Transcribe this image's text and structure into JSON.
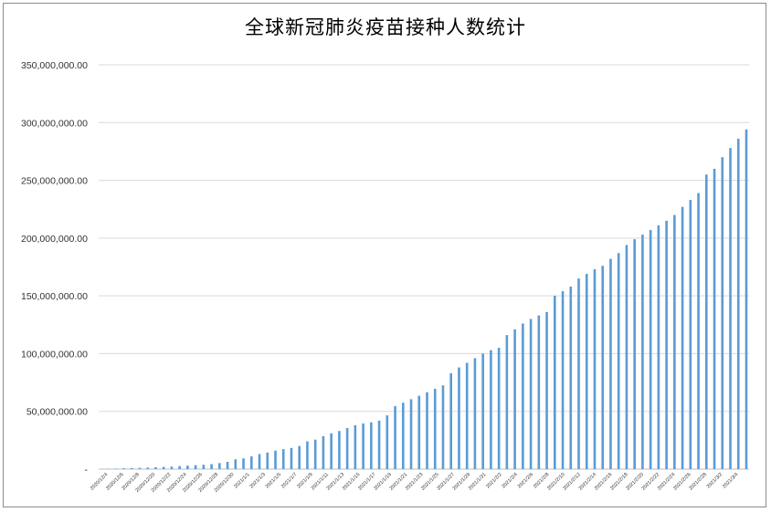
{
  "chart_data": {
    "type": "bar",
    "title": "全球新冠肺炎疫苗接种人数统计",
    "xlabel": "",
    "ylabel": "",
    "ylim": [
      0,
      350000000
    ],
    "yticks": [
      0,
      50000000,
      100000000,
      150000000,
      200000000,
      250000000,
      300000000,
      350000000
    ],
    "ytick_labels": [
      "-",
      "50,000,000.00",
      "100,000,000.00",
      "150,000,000.00",
      "200,000,000.00",
      "250,000,000.00",
      "300,000,000.00",
      "350,000,000.00"
    ],
    "grid": true,
    "legend": "none",
    "bar_color": "#5b9bd5",
    "xtick_labels": [
      "2020/12/4",
      "2020/12/6",
      "2020/12/8",
      "2020/12/20",
      "2020/12/22",
      "2020/12/24",
      "2020/12/26",
      "2020/12/28",
      "2020/12/30",
      "2021/1/1",
      "2021/1/3",
      "2021/1/5",
      "2021/1/7",
      "2021/1/9",
      "2021/1/11",
      "2021/1/13",
      "2021/1/15",
      "2021/1/17",
      "2021/1/19",
      "2021/1/21",
      "2021/1/23",
      "2021/1/25",
      "2021/1/27",
      "2021/1/29",
      "2021/1/31",
      "2021/2/2",
      "2021/2/4",
      "2021/2/6",
      "2021/2/8",
      "2021/2/10",
      "2021/2/12",
      "2021/2/14",
      "2021/2/16",
      "2021/2/18",
      "2021/2/20",
      "2021/2/22",
      "2021/2/24",
      "2021/2/26",
      "2021/2/28",
      "2021/3/2",
      "2021/3/4"
    ],
    "values": [
      200000,
      400000,
      700000,
      900000,
      1100000,
      1300000,
      1600000,
      1900000,
      2200000,
      2600000,
      3000000,
      3400000,
      3700000,
      4300000,
      5200000,
      6300000,
      8500000,
      9300000,
      11000000,
      13000000,
      14300000,
      16000000,
      17300000,
      18300000,
      20000000,
      24000000,
      25500000,
      28500000,
      31000000,
      33000000,
      35500000,
      38000000,
      39500000,
      40500000,
      42000000,
      46500000,
      54500000,
      57500000,
      60500000,
      63500000,
      66500000,
      69500000,
      72500000,
      83000000,
      88000000,
      92000000,
      96000000,
      100000000,
      103000000,
      105000000,
      116000000,
      121000000,
      126000000,
      130000000,
      133000000,
      136000000,
      150000000,
      154000000,
      158000000,
      165000000,
      169000000,
      173000000,
      176000000,
      182000000,
      187000000,
      194000000,
      199000000,
      203000000,
      207000000,
      211000000,
      215000000,
      220000000,
      227000000,
      233000000,
      239000000,
      255000000,
      260000000,
      270000000,
      278000000,
      286000000,
      294000000
    ]
  }
}
